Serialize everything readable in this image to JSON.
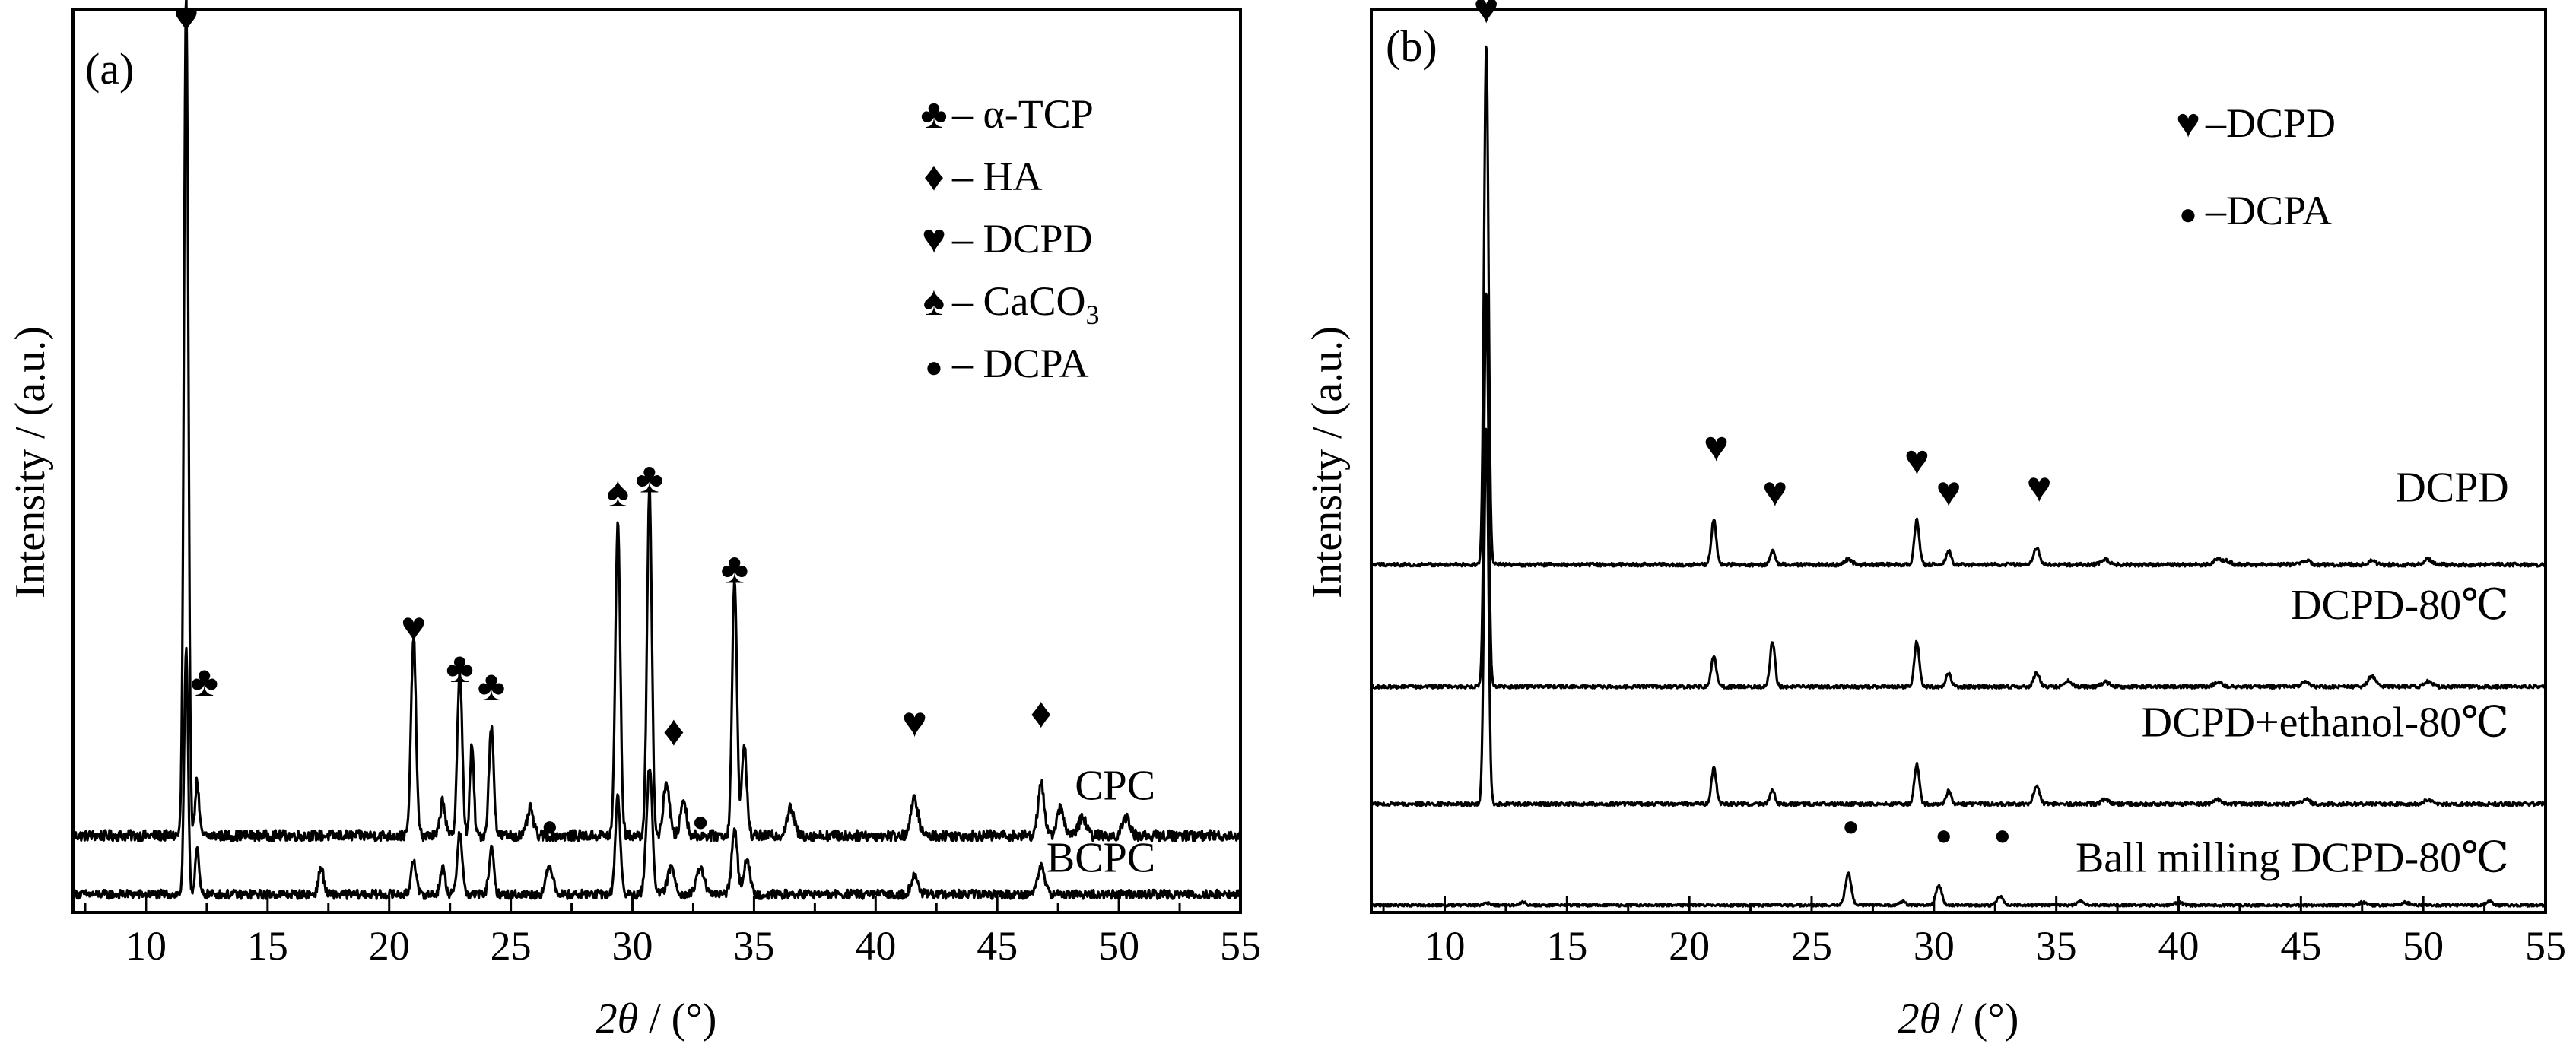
{
  "chart_data": [
    {
      "type": "line",
      "panel_label": "(a)",
      "xlabel_sym": "2θ",
      "xlabel_unit": " / (°)",
      "ylabel": "Intensity / (a.u.)",
      "xlim": [
        7,
        55
      ],
      "xticks": [
        "10",
        "15",
        "20",
        "25",
        "30",
        "35",
        "40",
        "45",
        "50",
        "55"
      ],
      "legend_position": "top-right",
      "legend": [
        {
          "symbol": "♣",
          "text": "– α-TCP"
        },
        {
          "symbol": "♦",
          "text": "– HA"
        },
        {
          "symbol": "♥",
          "text": "– DCPD"
        },
        {
          "symbol": "♠",
          "text": "– CaCO",
          "sub": "3"
        },
        {
          "symbol": "●",
          "text": "– DCPA"
        }
      ],
      "series": [
        {
          "name": "CPC",
          "baseline": 0.085,
          "noise": 0.006,
          "peaks": [
            [
              11.65,
              0.93,
              0.09
            ],
            [
              12.1,
              0.06,
              0.08
            ],
            [
              21.0,
              0.22,
              0.1
            ],
            [
              22.2,
              0.04,
              0.1
            ],
            [
              22.9,
              0.18,
              0.1
            ],
            [
              23.4,
              0.1,
              0.08
            ],
            [
              24.2,
              0.12,
              0.1
            ],
            [
              25.8,
              0.03,
              0.12
            ],
            [
              29.4,
              0.35,
              0.1
            ],
            [
              30.7,
              0.38,
              0.1
            ],
            [
              31.4,
              0.06,
              0.12
            ],
            [
              32.1,
              0.04,
              0.12
            ],
            [
              34.2,
              0.28,
              0.1
            ],
            [
              34.6,
              0.1,
              0.1
            ],
            [
              36.5,
              0.03,
              0.15
            ],
            [
              41.6,
              0.04,
              0.15
            ],
            [
              46.8,
              0.06,
              0.12
            ],
            [
              47.6,
              0.03,
              0.15
            ],
            [
              48.5,
              0.02,
              0.15
            ],
            [
              50.3,
              0.02,
              0.15
            ]
          ]
        },
        {
          "name": "BCPC",
          "baseline": 0.02,
          "noise": 0.005,
          "peaks": [
            [
              11.65,
              0.27,
              0.08
            ],
            [
              12.1,
              0.05,
              0.08
            ],
            [
              17.2,
              0.03,
              0.1
            ],
            [
              21.0,
              0.04,
              0.1
            ],
            [
              22.2,
              0.03,
              0.1
            ],
            [
              22.9,
              0.07,
              0.1
            ],
            [
              24.2,
              0.05,
              0.1
            ],
            [
              26.6,
              0.03,
              0.15
            ],
            [
              29.4,
              0.11,
              0.1
            ],
            [
              30.7,
              0.14,
              0.12
            ],
            [
              31.6,
              0.03,
              0.15
            ],
            [
              32.8,
              0.03,
              0.15
            ],
            [
              34.2,
              0.07,
              0.12
            ],
            [
              34.7,
              0.04,
              0.12
            ],
            [
              41.6,
              0.02,
              0.15
            ],
            [
              46.8,
              0.03,
              0.15
            ]
          ]
        }
      ],
      "curve_labels": [
        {
          "text": "CPC",
          "x": 51.5,
          "y": 0.125
        },
        {
          "text": "BCPC",
          "x": 51.5,
          "y": 0.045
        }
      ],
      "markers": [
        {
          "symbol": "♥",
          "x": 11.65,
          "y": 0.975
        },
        {
          "symbol": "♣",
          "x": 12.4,
          "y": 0.24
        },
        {
          "symbol": "♥",
          "x": 21.0,
          "y": 0.3
        },
        {
          "symbol": "♣",
          "x": 22.9,
          "y": 0.255
        },
        {
          "symbol": "♣",
          "x": 24.2,
          "y": 0.235
        },
        {
          "symbol": "♠",
          "x": 29.4,
          "y": 0.45
        },
        {
          "symbol": "♣",
          "x": 30.7,
          "y": 0.465
        },
        {
          "symbol": "♦",
          "x": 31.7,
          "y": 0.185
        },
        {
          "symbol": "♣",
          "x": 34.2,
          "y": 0.365
        },
        {
          "symbol": "♥",
          "x": 41.6,
          "y": 0.195
        },
        {
          "symbol": "♦",
          "x": 46.8,
          "y": 0.205
        },
        {
          "symbol": "●",
          "x": 26.6,
          "y": 0.085
        },
        {
          "symbol": "●",
          "x": 32.8,
          "y": 0.09
        }
      ]
    },
    {
      "type": "line",
      "panel_label": "(b)",
      "xlabel_sym": "2θ",
      "xlabel_unit": " / (°)",
      "ylabel": "Intensity / (a.u.)",
      "xlim": [
        7,
        55
      ],
      "xticks": [
        "10",
        "15",
        "20",
        "25",
        "30",
        "35",
        "40",
        "45",
        "50",
        "55"
      ],
      "legend_position": "top-right",
      "legend": [
        {
          "symbol": "♥",
          "text": "–DCPD"
        },
        {
          "symbol": "●",
          "text": "–DCPA"
        }
      ],
      "series": [
        {
          "name": "DCPD",
          "baseline": 0.385,
          "noise": 0.002,
          "peaks": [
            [
              11.7,
              0.58,
              0.09
            ],
            [
              21.0,
              0.05,
              0.1
            ],
            [
              23.4,
              0.015,
              0.1
            ],
            [
              26.5,
              0.006,
              0.15
            ],
            [
              29.3,
              0.05,
              0.1
            ],
            [
              30.6,
              0.015,
              0.1
            ],
            [
              34.2,
              0.018,
              0.12
            ],
            [
              37.0,
              0.006,
              0.15
            ],
            [
              41.6,
              0.006,
              0.15
            ],
            [
              42.0,
              0.004,
              0.15
            ],
            [
              45.2,
              0.005,
              0.15
            ],
            [
              47.9,
              0.004,
              0.15
            ],
            [
              50.2,
              0.006,
              0.15
            ]
          ]
        },
        {
          "name": "DCPD-80℃",
          "baseline": 0.25,
          "noise": 0.002,
          "peaks": [
            [
              11.7,
              0.44,
              0.09
            ],
            [
              21.0,
              0.035,
              0.1
            ],
            [
              23.4,
              0.05,
              0.1
            ],
            [
              29.3,
              0.05,
              0.1
            ],
            [
              30.6,
              0.015,
              0.1
            ],
            [
              34.2,
              0.015,
              0.12
            ],
            [
              35.5,
              0.006,
              0.15
            ],
            [
              37.0,
              0.005,
              0.15
            ],
            [
              41.6,
              0.005,
              0.15
            ],
            [
              45.2,
              0.005,
              0.15
            ],
            [
              47.9,
              0.012,
              0.15
            ],
            [
              50.2,
              0.006,
              0.15
            ]
          ]
        },
        {
          "name": "DCPD+ethanol-80℃",
          "baseline": 0.12,
          "noise": 0.002,
          "peaks": [
            [
              11.7,
              0.42,
              0.09
            ],
            [
              21.0,
              0.04,
              0.1
            ],
            [
              23.4,
              0.015,
              0.1
            ],
            [
              29.3,
              0.045,
              0.1
            ],
            [
              30.6,
              0.015,
              0.1
            ],
            [
              34.2,
              0.02,
              0.12
            ],
            [
              37.0,
              0.005,
              0.15
            ],
            [
              41.6,
              0.005,
              0.15
            ],
            [
              45.2,
              0.005,
              0.15
            ],
            [
              50.2,
              0.005,
              0.15
            ]
          ]
        },
        {
          "name": "Ball milling DCPD-80℃",
          "baseline": 0.008,
          "noise": 0.0015,
          "peaks": [
            [
              11.7,
              0.003,
              0.1
            ],
            [
              13.2,
              0.004,
              0.1
            ],
            [
              26.5,
              0.035,
              0.12
            ],
            [
              28.7,
              0.004,
              0.12
            ],
            [
              30.2,
              0.022,
              0.12
            ],
            [
              32.7,
              0.01,
              0.12
            ],
            [
              36.0,
              0.004,
              0.15
            ],
            [
              40.0,
              0.003,
              0.15
            ],
            [
              47.5,
              0.003,
              0.15
            ],
            [
              49.3,
              0.003,
              0.15
            ],
            [
              52.7,
              0.004,
              0.15
            ]
          ]
        }
      ],
      "curve_labels": [
        {
          "text": "DCPD",
          "x": 53.5,
          "y": 0.455
        },
        {
          "text": "DCPD-80℃",
          "x": 53.5,
          "y": 0.325
        },
        {
          "text": "DCPD+ethanol-80℃",
          "x": 53.5,
          "y": 0.195
        },
        {
          "text": "Ball milling DCPD-80℃",
          "x": 53.5,
          "y": 0.045
        }
      ],
      "markers": [
        {
          "symbol": "♥",
          "x": 11.7,
          "y": 0.985
        },
        {
          "symbol": "♥",
          "x": 21.1,
          "y": 0.5
        },
        {
          "symbol": "♥",
          "x": 23.5,
          "y": 0.45
        },
        {
          "symbol": "♥",
          "x": 29.3,
          "y": 0.485
        },
        {
          "symbol": "♥",
          "x": 30.6,
          "y": 0.45
        },
        {
          "symbol": "♥",
          "x": 34.3,
          "y": 0.455
        },
        {
          "symbol": "●",
          "x": 26.6,
          "y": 0.085
        },
        {
          "symbol": "●",
          "x": 30.4,
          "y": 0.075
        },
        {
          "symbol": "●",
          "x": 32.8,
          "y": 0.075
        }
      ]
    }
  ]
}
